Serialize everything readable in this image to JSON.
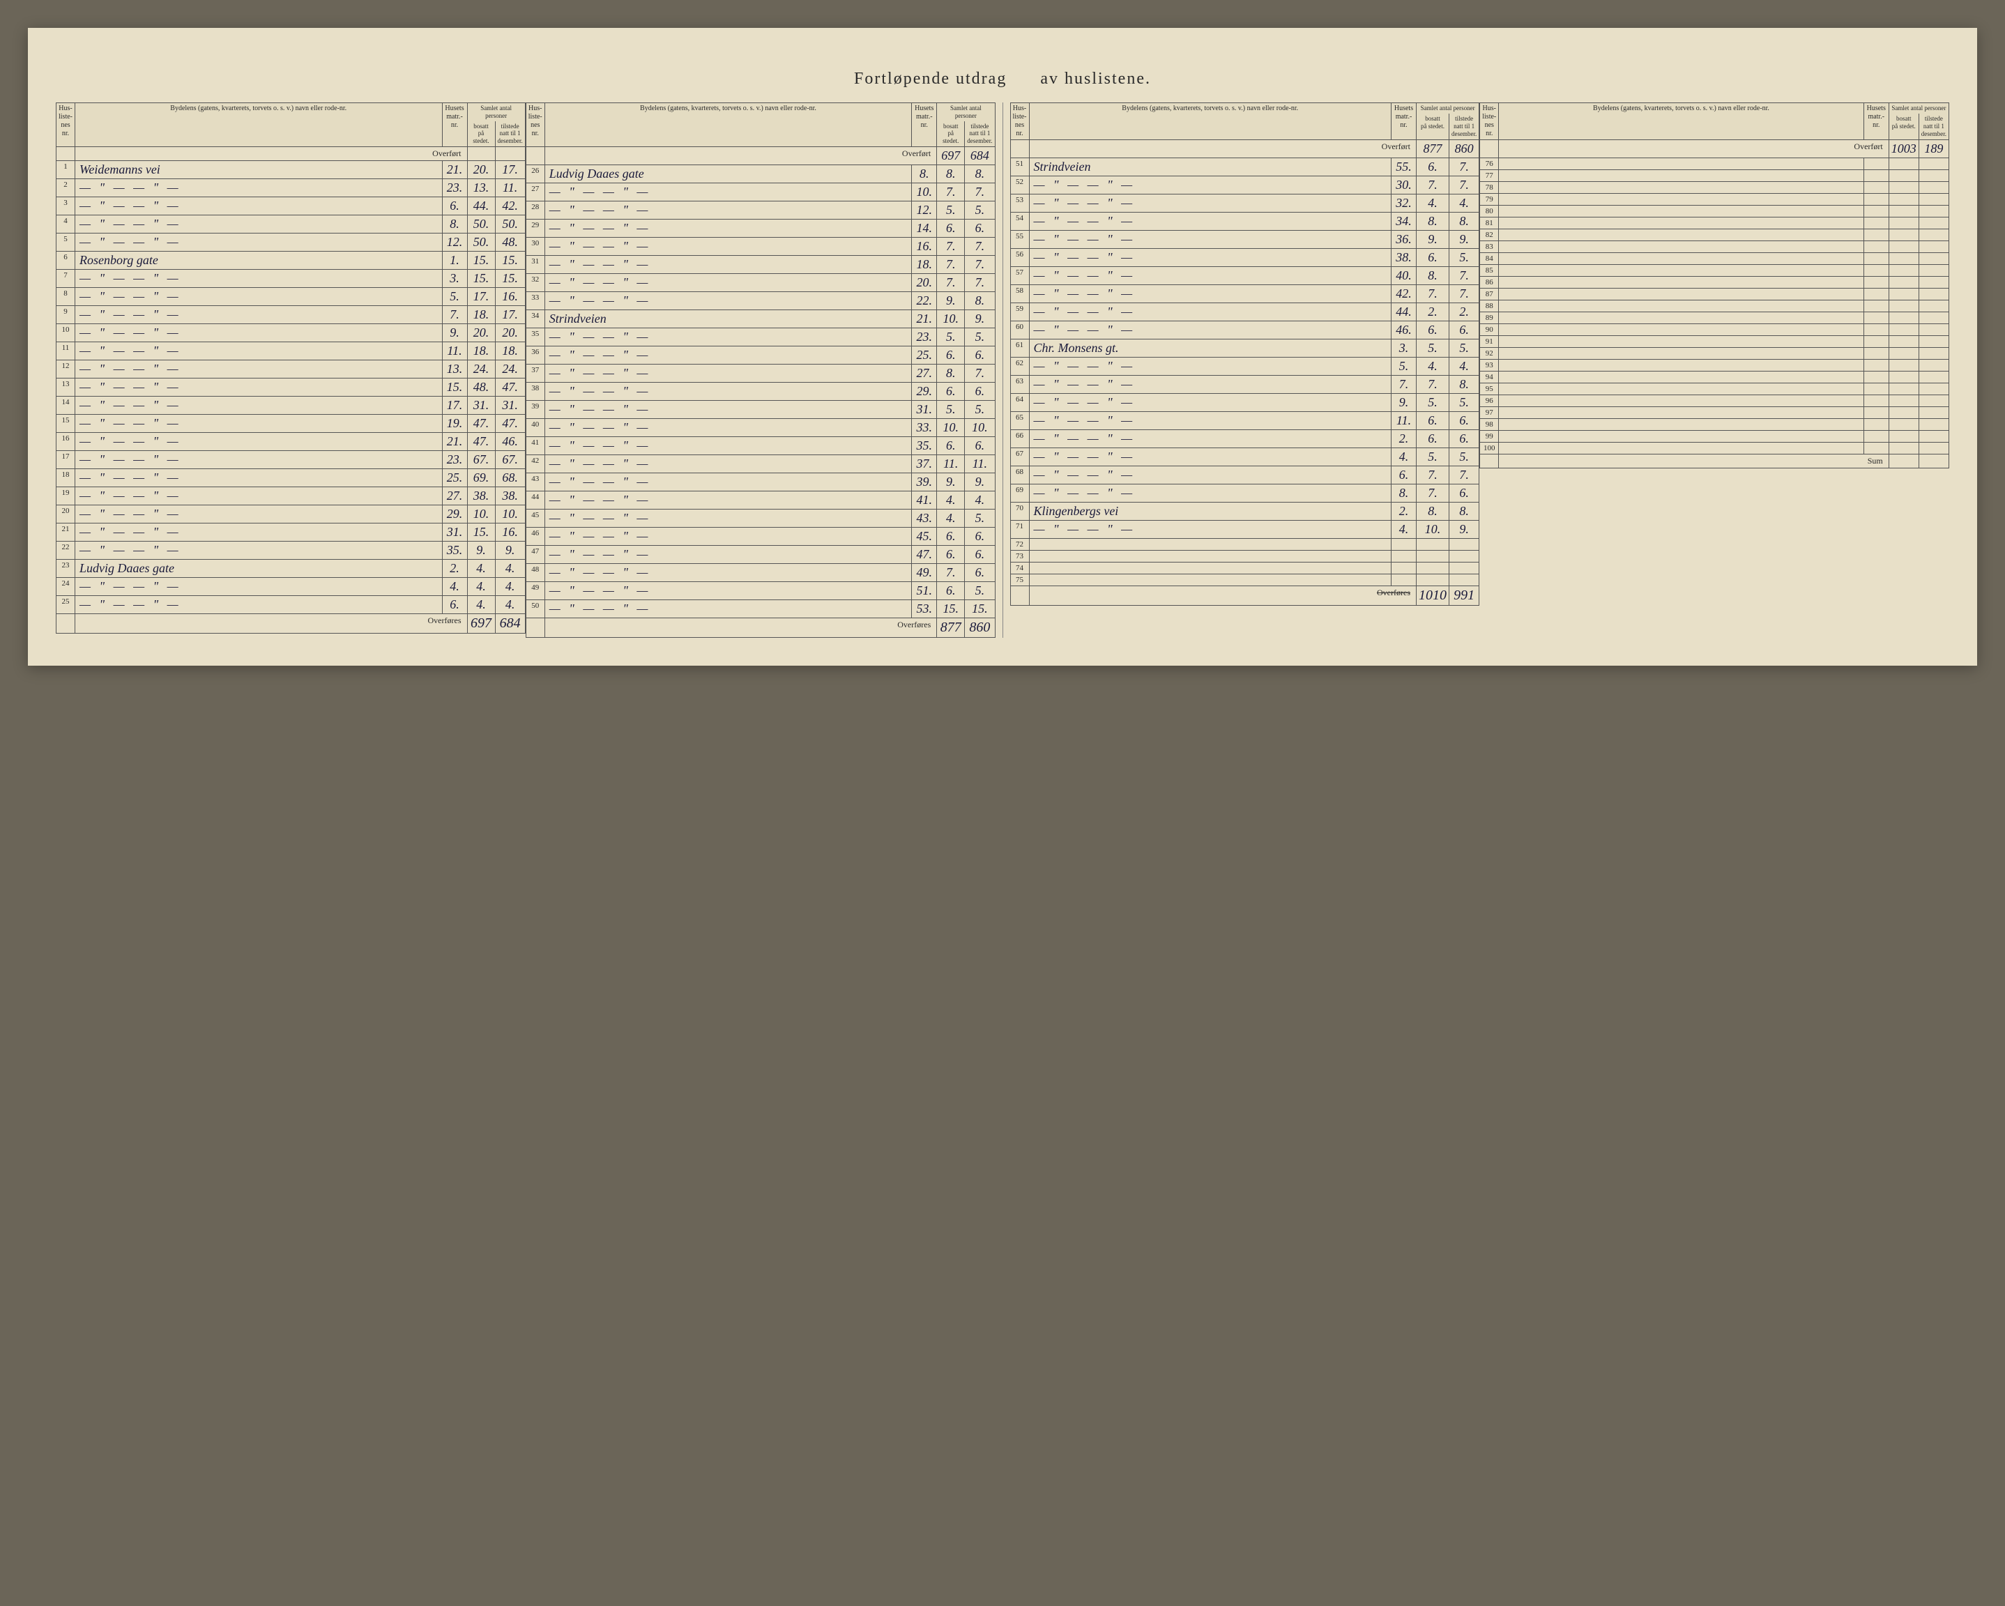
{
  "title_left": "Fortløpende utdrag",
  "title_right": "av huslistene.",
  "headers": {
    "hus_nr": "Hus-\nliste-\nnes\nnr.",
    "bydel": "Bydelens (gatens, kvarterets, torvets o. s. v.) navn eller rode-nr.",
    "husets": "Husets\nmatr.-\nnr.",
    "samlet": "Samlet antal personer",
    "bosatt": "bosatt\npå stedet.",
    "tilstede": "tilstede\nnatt til 1\ndesember."
  },
  "overfort": "Overført",
  "overfores": "Overføres",
  "sum": "Sum",
  "ditto": "—   \"   —        — \" —",
  "ditto_short": "—   \"   —",
  "col1": {
    "start_bosatt": "",
    "start_tilstede": "",
    "rows": [
      {
        "nr": "1",
        "street": "Weidemanns vei",
        "matr": "21.",
        "b": "20.",
        "t": "17."
      },
      {
        "nr": "2",
        "street": "ditto",
        "matr": "23.",
        "b": "13.",
        "t": "11."
      },
      {
        "nr": "3",
        "street": "ditto",
        "matr": "6.",
        "b": "44.",
        "t": "42."
      },
      {
        "nr": "4",
        "street": "ditto",
        "matr": "8.",
        "b": "50.",
        "t": "50."
      },
      {
        "nr": "5",
        "street": "ditto",
        "matr": "12.",
        "b": "50.",
        "t": "48."
      },
      {
        "nr": "6",
        "street": "Rosenborg gate",
        "matr": "1.",
        "b": "15.",
        "t": "15."
      },
      {
        "nr": "7",
        "street": "ditto",
        "matr": "3.",
        "b": "15.",
        "t": "15."
      },
      {
        "nr": "8",
        "street": "ditto",
        "matr": "5.",
        "b": "17.",
        "t": "16."
      },
      {
        "nr": "9",
        "street": "ditto",
        "matr": "7.",
        "b": "18.",
        "t": "17."
      },
      {
        "nr": "10",
        "street": "ditto",
        "matr": "9.",
        "b": "20.",
        "t": "20."
      },
      {
        "nr": "11",
        "street": "ditto",
        "matr": "11.",
        "b": "18.",
        "t": "18."
      },
      {
        "nr": "12",
        "street": "ditto",
        "matr": "13.",
        "b": "24.",
        "t": "24."
      },
      {
        "nr": "13",
        "street": "ditto",
        "matr": "15.",
        "b": "48.",
        "t": "47."
      },
      {
        "nr": "14",
        "street": "ditto",
        "matr": "17.",
        "b": "31.",
        "t": "31."
      },
      {
        "nr": "15",
        "street": "ditto",
        "matr": "19.",
        "b": "47.",
        "t": "47."
      },
      {
        "nr": "16",
        "street": "ditto",
        "matr": "21.",
        "b": "47.",
        "t": "46."
      },
      {
        "nr": "17",
        "street": "ditto",
        "matr": "23.",
        "b": "67.",
        "t": "67."
      },
      {
        "nr": "18",
        "street": "ditto",
        "matr": "25.",
        "b": "69.",
        "t": "68."
      },
      {
        "nr": "19",
        "street": "ditto",
        "matr": "27.",
        "b": "38.",
        "t": "38."
      },
      {
        "nr": "20",
        "street": "ditto",
        "matr": "29.",
        "b": "10.",
        "t": "10."
      },
      {
        "nr": "21",
        "street": "ditto",
        "matr": "31.",
        "b": "15.",
        "t": "16."
      },
      {
        "nr": "22",
        "street": "ditto",
        "matr": "35.",
        "b": "9.",
        "t": "9."
      },
      {
        "nr": "23",
        "street": "Ludvig Daaes gate",
        "matr": "2.",
        "b": "4.",
        "t": "4."
      },
      {
        "nr": "24",
        "street": "ditto",
        "matr": "4.",
        "b": "4.",
        "t": "4."
      },
      {
        "nr": "25",
        "street": "ditto",
        "matr": "6.",
        "b": "4.",
        "t": "4."
      }
    ],
    "end_bosatt": "697",
    "end_tilstede": "684"
  },
  "col2": {
    "start_bosatt": "697",
    "start_tilstede": "684",
    "rows": [
      {
        "nr": "26",
        "street": "Ludvig Daaes gate",
        "matr": "8.",
        "b": "8.",
        "t": "8."
      },
      {
        "nr": "27",
        "street": "ditto",
        "matr": "10.",
        "b": "7.",
        "t": "7."
      },
      {
        "nr": "28",
        "street": "ditto",
        "matr": "12.",
        "b": "5.",
        "t": "5."
      },
      {
        "nr": "29",
        "street": "ditto",
        "matr": "14.",
        "b": "6.",
        "t": "6."
      },
      {
        "nr": "30",
        "street": "ditto",
        "matr": "16.",
        "b": "7.",
        "t": "7."
      },
      {
        "nr": "31",
        "street": "ditto",
        "matr": "18.",
        "b": "7.",
        "t": "7."
      },
      {
        "nr": "32",
        "street": "ditto",
        "matr": "20.",
        "b": "7.",
        "t": "7."
      },
      {
        "nr": "33",
        "street": "ditto",
        "matr": "22.",
        "b": "9.",
        "t": "8."
      },
      {
        "nr": "34",
        "street": "Strindveien",
        "matr": "21.",
        "b": "10.",
        "t": "9."
      },
      {
        "nr": "35",
        "street": "ditto",
        "matr": "23.",
        "b": "5.",
        "t": "5."
      },
      {
        "nr": "36",
        "street": "ditto",
        "matr": "25.",
        "b": "6.",
        "t": "6."
      },
      {
        "nr": "37",
        "street": "ditto",
        "matr": "27.",
        "b": "8.",
        "t": "7."
      },
      {
        "nr": "38",
        "street": "ditto",
        "matr": "29.",
        "b": "6.",
        "t": "6."
      },
      {
        "nr": "39",
        "street": "ditto",
        "matr": "31.",
        "b": "5.",
        "t": "5."
      },
      {
        "nr": "40",
        "street": "ditto",
        "matr": "33.",
        "b": "10.",
        "t": "10."
      },
      {
        "nr": "41",
        "street": "ditto",
        "matr": "35.",
        "b": "6.",
        "t": "6."
      },
      {
        "nr": "42",
        "street": "ditto",
        "matr": "37.",
        "b": "11.",
        "t": "11."
      },
      {
        "nr": "43",
        "street": "ditto",
        "matr": "39.",
        "b": "9.",
        "t": "9."
      },
      {
        "nr": "44",
        "street": "ditto",
        "matr": "41.",
        "b": "4.",
        "t": "4."
      },
      {
        "nr": "45",
        "street": "ditto",
        "matr": "43.",
        "b": "4.",
        "t": "5."
      },
      {
        "nr": "46",
        "street": "ditto",
        "matr": "45.",
        "b": "6.",
        "t": "6."
      },
      {
        "nr": "47",
        "street": "ditto",
        "matr": "47.",
        "b": "6.",
        "t": "6."
      },
      {
        "nr": "48",
        "street": "ditto",
        "matr": "49.",
        "b": "7.",
        "t": "6."
      },
      {
        "nr": "49",
        "street": "ditto",
        "matr": "51.",
        "b": "6.",
        "t": "5."
      },
      {
        "nr": "50",
        "street": "ditto",
        "matr": "53.",
        "b": "15.",
        "t": "15."
      }
    ],
    "end_bosatt": "877",
    "end_tilstede": "860"
  },
  "col3": {
    "start_bosatt": "877",
    "start_tilstede": "860",
    "rows": [
      {
        "nr": "51",
        "street": "Strindveien",
        "matr": "55.",
        "b": "6.",
        "t": "7."
      },
      {
        "nr": "52",
        "street": "ditto",
        "matr": "30.",
        "b": "7.",
        "t": "7."
      },
      {
        "nr": "53",
        "street": "ditto",
        "matr": "32.",
        "b": "4.",
        "t": "4."
      },
      {
        "nr": "54",
        "street": "ditto",
        "matr": "34.",
        "b": "8.",
        "t": "8."
      },
      {
        "nr": "55",
        "street": "ditto",
        "matr": "36.",
        "b": "9.",
        "t": "9."
      },
      {
        "nr": "56",
        "street": "ditto",
        "matr": "38.",
        "b": "6.",
        "t": "5."
      },
      {
        "nr": "57",
        "street": "ditto",
        "matr": "40.",
        "b": "8.",
        "t": "7."
      },
      {
        "nr": "58",
        "street": "ditto",
        "matr": "42.",
        "b": "7.",
        "t": "7."
      },
      {
        "nr": "59",
        "street": "ditto",
        "matr": "44.",
        "b": "2.",
        "t": "2."
      },
      {
        "nr": "60",
        "street": "ditto",
        "matr": "46.",
        "b": "6.",
        "t": "6."
      },
      {
        "nr": "61",
        "street": "Chr. Monsens gt.",
        "matr": "3.",
        "b": "5.",
        "t": "5."
      },
      {
        "nr": "62",
        "street": "ditto",
        "matr": "5.",
        "b": "4.",
        "t": "4."
      },
      {
        "nr": "63",
        "street": "ditto",
        "matr": "7.",
        "b": "7.",
        "t": "8."
      },
      {
        "nr": "64",
        "street": "ditto",
        "matr": "9.",
        "b": "5.",
        "t": "5."
      },
      {
        "nr": "65",
        "street": "ditto",
        "matr": "11.",
        "b": "6.",
        "t": "6."
      },
      {
        "nr": "66",
        "street": "ditto",
        "matr": "2.",
        "b": "6.",
        "t": "6."
      },
      {
        "nr": "67",
        "street": "ditto",
        "matr": "4.",
        "b": "5.",
        "t": "5."
      },
      {
        "nr": "68",
        "street": "ditto",
        "matr": "6.",
        "b": "7.",
        "t": "7."
      },
      {
        "nr": "69",
        "street": "ditto",
        "matr": "8.",
        "b": "7.",
        "t": "6."
      },
      {
        "nr": "70",
        "street": "Klingenbergs vei",
        "matr": "2.",
        "b": "8.",
        "t": "8."
      },
      {
        "nr": "71",
        "street": "ditto",
        "matr": "4.",
        "b": "10.",
        "t": "9."
      },
      {
        "nr": "72",
        "street": "",
        "matr": "",
        "b": "",
        "t": ""
      },
      {
        "nr": "73",
        "street": "",
        "matr": "",
        "b": "",
        "t": ""
      },
      {
        "nr": "74",
        "street": "",
        "matr": "",
        "b": "",
        "t": ""
      },
      {
        "nr": "75",
        "street": "",
        "matr": "",
        "b": "",
        "t": ""
      }
    ],
    "end_bosatt": "1010",
    "end_tilstede": "991",
    "overfores_strike": true
  },
  "col4": {
    "start_bosatt": "1003",
    "start_tilstede": "189",
    "start_erased": true,
    "rows": [
      {
        "nr": "76",
        "street": "",
        "matr": "",
        "b": "",
        "t": ""
      },
      {
        "nr": "77",
        "street": "",
        "matr": "",
        "b": "",
        "t": ""
      },
      {
        "nr": "78",
        "street": "",
        "matr": "",
        "b": "",
        "t": ""
      },
      {
        "nr": "79",
        "street": "",
        "matr": "",
        "b": "",
        "t": ""
      },
      {
        "nr": "80",
        "street": "",
        "matr": "",
        "b": "",
        "t": ""
      },
      {
        "nr": "81",
        "street": "",
        "matr": "",
        "b": "",
        "t": ""
      },
      {
        "nr": "82",
        "street": "",
        "matr": "",
        "b": "",
        "t": ""
      },
      {
        "nr": "83",
        "street": "",
        "matr": "",
        "b": "",
        "t": ""
      },
      {
        "nr": "84",
        "street": "",
        "matr": "",
        "b": "",
        "t": ""
      },
      {
        "nr": "85",
        "street": "",
        "matr": "",
        "b": "",
        "t": ""
      },
      {
        "nr": "86",
        "street": "",
        "matr": "",
        "b": "",
        "t": ""
      },
      {
        "nr": "87",
        "street": "",
        "matr": "",
        "b": "",
        "t": ""
      },
      {
        "nr": "88",
        "street": "",
        "matr": "",
        "b": "",
        "t": ""
      },
      {
        "nr": "89",
        "street": "",
        "matr": "",
        "b": "",
        "t": ""
      },
      {
        "nr": "90",
        "street": "",
        "matr": "",
        "b": "",
        "t": ""
      },
      {
        "nr": "91",
        "street": "",
        "matr": "",
        "b": "",
        "t": ""
      },
      {
        "nr": "92",
        "street": "",
        "matr": "",
        "b": "",
        "t": ""
      },
      {
        "nr": "93",
        "street": "",
        "matr": "",
        "b": "",
        "t": ""
      },
      {
        "nr": "94",
        "street": "",
        "matr": "",
        "b": "",
        "t": ""
      },
      {
        "nr": "95",
        "street": "",
        "matr": "",
        "b": "",
        "t": ""
      },
      {
        "nr": "96",
        "street": "",
        "matr": "",
        "b": "",
        "t": ""
      },
      {
        "nr": "97",
        "street": "",
        "matr": "",
        "b": "",
        "t": ""
      },
      {
        "nr": "98",
        "street": "",
        "matr": "",
        "b": "",
        "t": ""
      },
      {
        "nr": "99",
        "street": "",
        "matr": "",
        "b": "",
        "t": ""
      },
      {
        "nr": "100",
        "street": "",
        "matr": "",
        "b": "",
        "t": ""
      }
    ],
    "end_label": "Sum",
    "end_bosatt": "",
    "end_tilstede": ""
  }
}
